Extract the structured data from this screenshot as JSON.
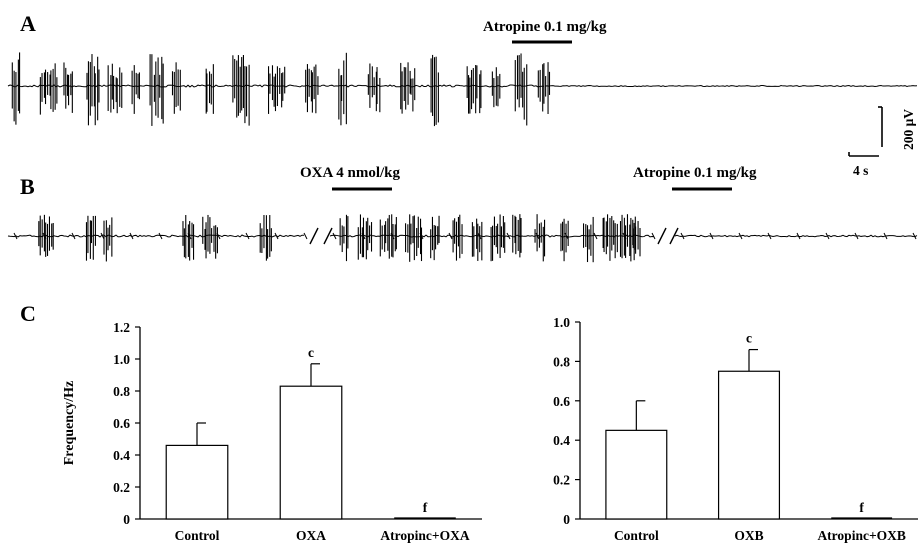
{
  "panels": {
    "a_letter": "A",
    "b_letter": "B",
    "c_letter": "C"
  },
  "trace_a": {
    "drug_label": "Atropine 0.1 mg/kg"
  },
  "trace_b": {
    "drug_label_1": "OXA 4 nmol/kg",
    "drug_label_2": "Atropine 0.1 mg/kg"
  },
  "scale_bar": {
    "voltage_label": "200 μV",
    "time_label": "4 s"
  },
  "chart_data": [
    {
      "type": "bar",
      "title": "",
      "xlabel": "",
      "ylabel": "Frequency/Hz",
      "ylim": [
        0,
        1.2
      ],
      "yticks": [
        "0",
        "0.2",
        "0.4",
        "0.6",
        "0.8",
        "1.0",
        "1.2"
      ],
      "categories": [
        "Control",
        "OXA",
        "Atropinc+OXA"
      ],
      "values": [
        0.46,
        0.83,
        0.0
      ],
      "errors": [
        0.14,
        0.14,
        0.0
      ],
      "annotations": [
        "",
        "c",
        "f"
      ],
      "grid": false,
      "bar_color": "#ffffff"
    },
    {
      "type": "bar",
      "title": "",
      "xlabel": "",
      "ylabel": "",
      "ylim": [
        0,
        1.0
      ],
      "yticks": [
        "0",
        "0.2",
        "0.4",
        "0.6",
        "0.8",
        "1.0"
      ],
      "categories": [
        "Control",
        "OXB",
        "Atropinc+OXB"
      ],
      "values": [
        0.45,
        0.75,
        0.0
      ],
      "errors": [
        0.15,
        0.11,
        0.0
      ],
      "annotations": [
        "",
        "c",
        "f"
      ],
      "grid": false,
      "bar_color": "#ffffff"
    }
  ]
}
